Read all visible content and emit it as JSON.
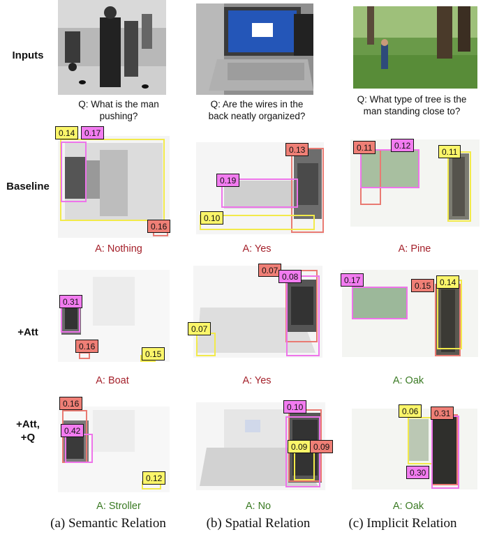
{
  "rows": {
    "inputs": "Inputs",
    "baseline": "Baseline",
    "att": "+Att",
    "att_q_line1": "+Att,",
    "att_q_line2": "+Q"
  },
  "questions": {
    "a_line1": "Q: What  is the man",
    "a_line2": "pushing?",
    "b_line1": "Q: Are the wires in the",
    "b_line2": "back neatly organized?",
    "c_line1": "Q: What type of tree is the",
    "c_line2": "man standing close to?"
  },
  "scores": {
    "a_base": [
      "0.14",
      "0.17",
      "0.16"
    ],
    "b_base": [
      "0.13",
      "0.19",
      "0.10"
    ],
    "c_base": [
      "0.11",
      "0.12",
      "0.11"
    ],
    "a_att": [
      "0.31",
      "0.16",
      "0.15"
    ],
    "b_att": [
      "0.07",
      "0.08",
      "0.07"
    ],
    "c_att": [
      "0.17",
      "0.15",
      "0.14"
    ],
    "a_attq": [
      "0.16",
      "0.42",
      "0.12"
    ],
    "b_attq": [
      "0.10",
      "0.09",
      "0.09"
    ],
    "c_attq": [
      "0.06",
      "0.31",
      "0.30"
    ]
  },
  "answers": {
    "a_base": "A: Nothing",
    "b_base": "A: Yes",
    "c_base": "A: Pine",
    "a_att": "A: Boat",
    "b_att": "A: Yes",
    "c_att": "A: Oak",
    "a_attq": "A: Stroller",
    "b_attq": "A: No",
    "c_attq": "A: Oak"
  },
  "captions": {
    "a": "(a) Semantic Relation",
    "b": "(b) Spatial Relation",
    "c": "(c) Implicit Relation"
  },
  "colors": {
    "box_yellow": "#f2ea4a",
    "box_pink": "#ee74ea",
    "box_red": "#e97a72",
    "answer_wrong": "#a4202a",
    "answer_correct": "#3a7a23"
  }
}
